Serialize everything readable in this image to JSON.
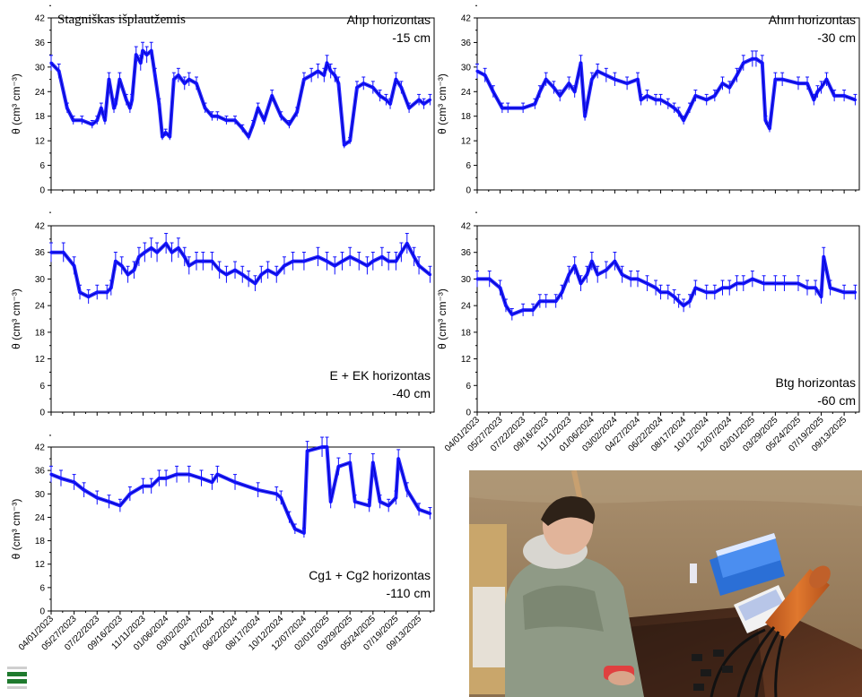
{
  "chart_data": [
    {
      "id": "ahp",
      "type": "line",
      "title": "Stagniškas išplautžemis",
      "annotation": "Ahp horizontas",
      "depth": "-15 cm",
      "ylabel": "θ (cm³ cm⁻³)",
      "ylim": [
        0,
        42
      ],
      "yticks": [
        0,
        6,
        12,
        18,
        24,
        30,
        36,
        42
      ],
      "x_dates": [],
      "series": [
        {
          "color": "#1010ff",
          "x": [
            "2023-04-01",
            "2023-04-20",
            "2023-05-10",
            "2023-05-25",
            "2023-06-15",
            "2023-07-10",
            "2023-07-22",
            "2023-08-01",
            "2023-08-10",
            "2023-08-20",
            "2023-09-01",
            "2023-09-05",
            "2023-09-15",
            "2023-10-01",
            "2023-10-10",
            "2023-10-15",
            "2023-10-25",
            "2023-11-05",
            "2023-11-10",
            "2023-11-20",
            "2023-12-01",
            "2023-12-10",
            "2023-12-20",
            "2023-12-28",
            "2024-01-05",
            "2024-01-15",
            "2024-01-25",
            "2024-02-05",
            "2024-02-20",
            "2024-03-02",
            "2024-03-20",
            "2024-04-10",
            "2024-04-27",
            "2024-05-10",
            "2024-06-01",
            "2024-06-22",
            "2024-07-10",
            "2024-07-25",
            "2024-08-05",
            "2024-08-17",
            "2024-09-01",
            "2024-09-20",
            "2024-10-12",
            "2024-11-01",
            "2024-11-20",
            "2024-12-07",
            "2024-12-25",
            "2025-01-10",
            "2025-01-25",
            "2025-02-01",
            "2025-02-10",
            "2025-02-20",
            "2025-03-01",
            "2025-03-15",
            "2025-03-29",
            "2025-04-15",
            "2025-05-01",
            "2025-05-24",
            "2025-06-10",
            "2025-06-25",
            "2025-07-05",
            "2025-07-19",
            "2025-08-01",
            "2025-08-20",
            "2025-09-13",
            "2025-09-25",
            "2025-10-10"
          ],
          "y": [
            31,
            29,
            20,
            17,
            17,
            16,
            17,
            20,
            17,
            27,
            20,
            21,
            27,
            22,
            20,
            22,
            33,
            31,
            34,
            33,
            34,
            28,
            21,
            13,
            14,
            13,
            27,
            28,
            26,
            27,
            26,
            20,
            18,
            18,
            17,
            17,
            15,
            13,
            16,
            20,
            17,
            23,
            18,
            16,
            19,
            27,
            28,
            29,
            28,
            31,
            29,
            28,
            26,
            11,
            12,
            25,
            26,
            25,
            23,
            22,
            21,
            27,
            25,
            20,
            22,
            21,
            22
          ]
        }
      ]
    },
    {
      "id": "ahm",
      "type": "line",
      "annotation": "Ahm horizontas",
      "depth": "-30 cm",
      "ylabel": "θ (cm³ cm⁻³)",
      "ylim": [
        0,
        42
      ],
      "yticks": [
        0,
        6,
        12,
        18,
        24,
        30,
        36,
        42
      ],
      "x_dates": [
        "04/01/2023",
        "05/27/2023",
        "07/22/2023",
        "09/16/2023",
        "11/11/2023",
        "01/06/2024",
        "03/02/2024",
        "04/27/2024",
        "06/22/2024",
        "08/17/2024",
        "10/12/2024",
        "12/07/2024",
        "02/01/2025",
        "03/29/2025",
        "05/24/2025",
        "07/19/2025",
        "09/13/2025"
      ],
      "series": [
        {
          "color": "#1010ff",
          "x": [
            "2023-04-01",
            "2023-04-20",
            "2023-05-10",
            "2023-06-01",
            "2023-06-15",
            "2023-07-22",
            "2023-08-20",
            "2023-09-01",
            "2023-09-16",
            "2023-10-05",
            "2023-10-20",
            "2023-11-11",
            "2023-11-25",
            "2023-12-10",
            "2023-12-20",
            "2024-01-06",
            "2024-01-20",
            "2024-02-10",
            "2024-03-02",
            "2024-04-01",
            "2024-04-27",
            "2024-05-05",
            "2024-05-20",
            "2024-06-10",
            "2024-06-22",
            "2024-07-10",
            "2024-07-25",
            "2024-08-05",
            "2024-08-17",
            "2024-09-01",
            "2024-09-15",
            "2024-10-12",
            "2024-11-01",
            "2024-11-20",
            "2024-12-07",
            "2024-12-25",
            "2025-01-10",
            "2025-02-01",
            "2025-02-10",
            "2025-02-25",
            "2025-03-05",
            "2025-03-15",
            "2025-03-29",
            "2025-04-15",
            "2025-05-24",
            "2025-06-15",
            "2025-07-01",
            "2025-07-10",
            "2025-07-19",
            "2025-08-01",
            "2025-08-20",
            "2025-09-13",
            "2025-10-10"
          ],
          "y": [
            29,
            28,
            24,
            20,
            20,
            20,
            21,
            24,
            27,
            25,
            23,
            26,
            24,
            31,
            18,
            27,
            29,
            28,
            27,
            26,
            27,
            22,
            23,
            22,
            22,
            21,
            20,
            19,
            17,
            20,
            23,
            22,
            23,
            26,
            25,
            28,
            31,
            32,
            32,
            31,
            17,
            15,
            27,
            27,
            26,
            26,
            22,
            24,
            25,
            27,
            23,
            23,
            22
          ]
        }
      ]
    },
    {
      "id": "e_ek",
      "type": "line",
      "annotation": "E + EK horizontas",
      "depth": "-40 cm",
      "ylabel": "θ (cm³ cm⁻³)",
      "ylim": [
        0,
        42
      ],
      "yticks": [
        0,
        6,
        12,
        18,
        24,
        30,
        36,
        42
      ],
      "x_dates": [],
      "series": [
        {
          "color": "#1010ff",
          "x": [
            "2023-04-01",
            "2023-05-01",
            "2023-05-27",
            "2023-06-10",
            "2023-07-01",
            "2023-07-22",
            "2023-08-15",
            "2023-08-25",
            "2023-09-05",
            "2023-09-20",
            "2023-10-05",
            "2023-10-20",
            "2023-11-01",
            "2023-11-15",
            "2023-12-01",
            "2023-12-15",
            "2024-01-06",
            "2024-01-20",
            "2024-02-05",
            "2024-02-20",
            "2024-03-02",
            "2024-03-20",
            "2024-04-05",
            "2024-04-27",
            "2024-05-15",
            "2024-06-01",
            "2024-06-22",
            "2024-07-10",
            "2024-07-25",
            "2024-08-10",
            "2024-08-25",
            "2024-09-10",
            "2024-10-01",
            "2024-10-20",
            "2024-11-10",
            "2024-12-07",
            "2025-01-10",
            "2025-02-01",
            "2025-02-20",
            "2025-03-10",
            "2025-03-29",
            "2025-04-20",
            "2025-05-10",
            "2025-05-24",
            "2025-06-15",
            "2025-07-01",
            "2025-07-19",
            "2025-08-01",
            "2025-08-15",
            "2025-09-01",
            "2025-09-13",
            "2025-10-10"
          ],
          "y": [
            36,
            36,
            33,
            27,
            26,
            27,
            27,
            28,
            34,
            33,
            31,
            32,
            35,
            36,
            37,
            36,
            38,
            36,
            37,
            35,
            33,
            34,
            34,
            34,
            32,
            31,
            32,
            31,
            30,
            29,
            31,
            32,
            31,
            33,
            34,
            34,
            35,
            34,
            33,
            34,
            35,
            34,
            33,
            34,
            35,
            34,
            34,
            36,
            38,
            35,
            33,
            31
          ]
        }
      ]
    },
    {
      "id": "btg",
      "type": "line",
      "annotation": "Btg horizontas",
      "depth": "-60 cm",
      "ylabel": "θ (cm³ cm⁻³)",
      "ylim": [
        0,
        42
      ],
      "yticks": [
        0,
        6,
        12,
        18,
        24,
        30,
        36,
        42
      ],
      "x_dates": [
        "04/01/2023",
        "05/27/2023",
        "07/22/2023",
        "09/16/2023",
        "11/11/2023",
        "01/06/2024",
        "03/02/2024",
        "04/27/2024",
        "06/22/2024",
        "08/17/2024",
        "10/12/2024",
        "12/07/2024",
        "02/01/2025",
        "03/29/2025",
        "05/24/2025",
        "07/19/2025",
        "09/13/2025"
      ],
      "series": [
        {
          "color": "#1010ff",
          "x": [
            "2023-04-01",
            "2023-05-01",
            "2023-05-27",
            "2023-06-10",
            "2023-06-25",
            "2023-07-22",
            "2023-08-15",
            "2023-09-01",
            "2023-09-16",
            "2023-10-10",
            "2023-10-25",
            "2023-11-11",
            "2023-11-25",
            "2023-12-10",
            "2023-12-25",
            "2024-01-06",
            "2024-01-20",
            "2024-02-10",
            "2024-03-02",
            "2024-03-20",
            "2024-04-10",
            "2024-04-27",
            "2024-05-20",
            "2024-06-10",
            "2024-06-22",
            "2024-07-10",
            "2024-07-25",
            "2024-08-05",
            "2024-08-17",
            "2024-09-01",
            "2024-09-15",
            "2024-10-12",
            "2024-11-01",
            "2024-11-20",
            "2024-12-07",
            "2024-12-25",
            "2025-01-10",
            "2025-02-01",
            "2025-03-01",
            "2025-03-29",
            "2025-04-20",
            "2025-05-24",
            "2025-06-15",
            "2025-07-05",
            "2025-07-19",
            "2025-07-25",
            "2025-08-10",
            "2025-09-13",
            "2025-10-10"
          ],
          "y": [
            30,
            30,
            28,
            24,
            22,
            23,
            23,
            25,
            25,
            25,
            27,
            31,
            33,
            29,
            31,
            34,
            31,
            32,
            34,
            31,
            30,
            30,
            29,
            28,
            27,
            27,
            26,
            25,
            24,
            25,
            28,
            27,
            27,
            28,
            28,
            29,
            29,
            30,
            29,
            29,
            29,
            29,
            28,
            28,
            26,
            35,
            28,
            27,
            27
          ]
        }
      ]
    },
    {
      "id": "cg",
      "type": "line",
      "annotation": "Cg1 + Cg2 horizontas",
      "depth": "-110 cm",
      "ylabel": "θ (cm³ cm⁻³)",
      "ylim": [
        0,
        42
      ],
      "yticks": [
        0,
        6,
        12,
        18,
        24,
        30,
        36,
        42
      ],
      "x_dates": [
        "04/01/2023",
        "05/27/2023",
        "07/22/2023",
        "09/16/2023",
        "11/11/2023",
        "01/06/2024",
        "03/02/2024",
        "04/27/2024",
        "06/22/2024",
        "08/17/2024",
        "10/12/2024",
        "12/07/2024",
        "02/01/2025",
        "03/29/2025",
        "05/24/2025",
        "07/19/2025",
        "09/13/2025"
      ],
      "series": [
        {
          "color": "#1010ff",
          "x": [
            "2023-04-01",
            "2023-04-25",
            "2023-05-27",
            "2023-06-20",
            "2023-07-22",
            "2023-08-20",
            "2023-09-16",
            "2023-10-10",
            "2023-11-11",
            "2023-12-01",
            "2023-12-20",
            "2024-01-06",
            "2024-02-01",
            "2024-03-02",
            "2024-04-01",
            "2024-04-27",
            "2024-05-10",
            "2024-06-22",
            "2024-08-17",
            "2024-10-01",
            "2024-10-12",
            "2024-11-01",
            "2024-11-15",
            "2024-12-07",
            "2024-12-15",
            "2025-01-20",
            "2025-02-01",
            "2025-02-10",
            "2025-03-01",
            "2025-03-29",
            "2025-04-10",
            "2025-05-15",
            "2025-05-24",
            "2025-06-10",
            "2025-07-01",
            "2025-07-19",
            "2025-07-25",
            "2025-08-15",
            "2025-09-13",
            "2025-10-10"
          ],
          "y": [
            35,
            34,
            33,
            31,
            29,
            28,
            27,
            30,
            32,
            32,
            34,
            34,
            35,
            35,
            34,
            33,
            35,
            33,
            31,
            30,
            29,
            24,
            21,
            20,
            41,
            42,
            42,
            28,
            37,
            38,
            28,
            27,
            38,
            28,
            27,
            29,
            39,
            31,
            26,
            25
          ]
        }
      ]
    }
  ],
  "photo": {
    "alt": ""
  },
  "colors": {
    "series": "#1010ff",
    "logo_green": "#1f7a2e"
  }
}
